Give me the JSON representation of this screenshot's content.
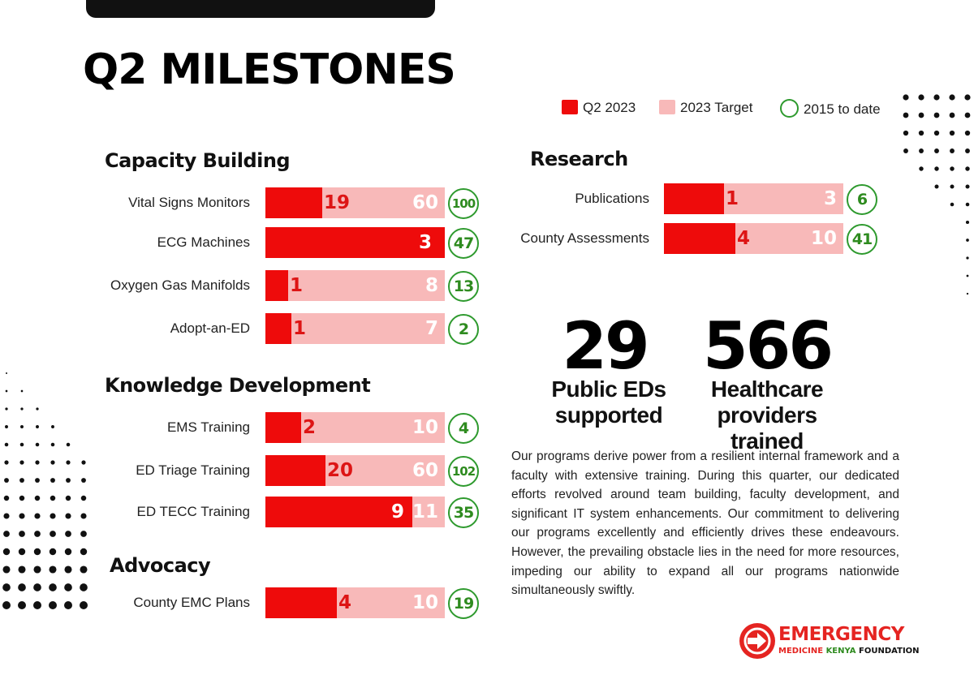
{
  "page": {
    "title": "Q2 MILESTONES"
  },
  "colors": {
    "q2": "#ee0b0b",
    "target": "#f8b9b9",
    "to_date": "#2e9a2e"
  },
  "legend": {
    "q2": "Q2 2023",
    "target": "2023 Target",
    "to_date": "2015 to date"
  },
  "chart_data": {
    "type": "bar",
    "orientation": "horizontal",
    "title": "Q2 MILESTONES",
    "series_names": [
      "Q2 2023",
      "2023 Target",
      "2015 to date"
    ],
    "groups": [
      {
        "name": "Capacity Building",
        "rows": [
          {
            "label": "Vital Signs Monitors",
            "q2": 19,
            "target": 60,
            "to_date": 100
          },
          {
            "label": "ECG Machines",
            "q2": 3,
            "target": 3,
            "to_date": 47
          },
          {
            "label": "Oxygen Gas Manifolds",
            "q2": 1,
            "target": 8,
            "to_date": 13
          },
          {
            "label": "Adopt-an-ED",
            "q2": 1,
            "target": 7,
            "to_date": 2
          }
        ]
      },
      {
        "name": "Knowledge Development",
        "rows": [
          {
            "label": "EMS Training",
            "q2": 2,
            "target": 10,
            "to_date": 4
          },
          {
            "label": "ED Triage Training",
            "q2": 20,
            "target": 60,
            "to_date": 102
          },
          {
            "label": "ED TECC Training",
            "q2": 9,
            "target": 11,
            "to_date": 35
          }
        ]
      },
      {
        "name": "Advocacy",
        "rows": [
          {
            "label": "County EMC Plans",
            "q2": 4,
            "target": 10,
            "to_date": 19
          }
        ]
      },
      {
        "name": "Research",
        "rows": [
          {
            "label": "Publications",
            "q2": 1,
            "target": 3,
            "to_date": 6
          },
          {
            "label": "County Assessments",
            "q2": 4,
            "target": 10,
            "to_date": 41
          }
        ]
      }
    ]
  },
  "stats": [
    {
      "number": "29",
      "caption_line1": "Public EDs",
      "caption_line2": "supported"
    },
    {
      "number": "566",
      "caption_line1": "Healthcare",
      "caption_line2": "providers trained"
    }
  ],
  "paragraph": "Our programs derive power from a resilient internal framework and a faculty with extensive training. During this quarter, our dedicated efforts revolved around team building, faculty development, and significant IT system enhancements. Our commitment to delivering our programs excellently and efficiently drives these endeavours. However, the prevailing obstacle lies in the need for more resources, impeding our ability to expand all our programs nationwide simultaneously swiftly.",
  "logo": {
    "top": "EMERGENCY",
    "bottom_1": "MEDICINE",
    "bottom_2": "KENYA",
    "bottom_3": "FOUNDATION"
  }
}
